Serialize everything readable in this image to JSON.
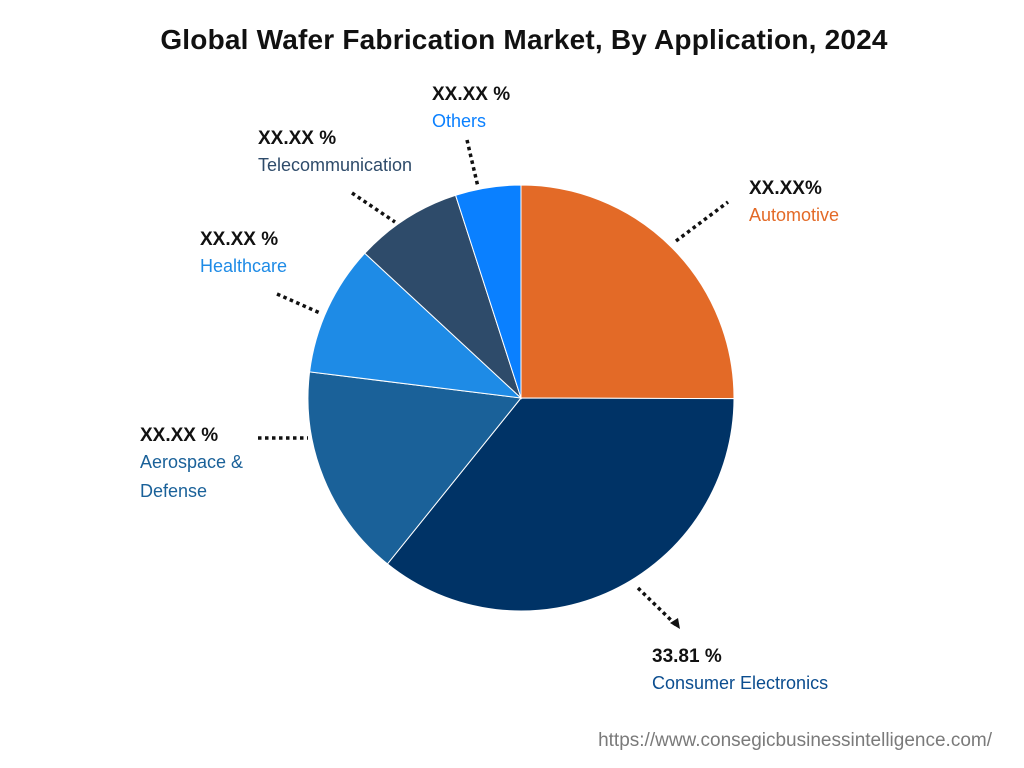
{
  "chart_data": {
    "type": "pie",
    "title": "Global Wafer Fabrication Market, By Application, 2024",
    "slices": [
      {
        "label": "Automotive",
        "value_label": "XX.XX%",
        "value": 23.7,
        "color": "#E36A27"
      },
      {
        "label": "Consumer Electronics",
        "value_label": "33.81 %",
        "value": 33.81,
        "color": "#003366"
      },
      {
        "label": "Aerospace & Defense",
        "value_label": "XX.XX %",
        "value": 15.3,
        "color": "#1A6199"
      },
      {
        "label": "Healthcare",
        "value_label": "XX.XX %",
        "value": 9.4,
        "color": "#1E8BE6"
      },
      {
        "label": "Telecommunication",
        "value_label": "XX.XX %",
        "value": 7.7,
        "color": "#2E4B6A"
      },
      {
        "label": "Others",
        "value_label": "XX.XX %",
        "value": 4.7,
        "color": "#0A80FF"
      }
    ],
    "label_colors": {
      "Automotive": "#E36A27",
      "Consumer Electronics": "#0B4D8F",
      "Aerospace & Defense": "#1A6199",
      "Healthcare": "#1E8BE6",
      "Telecommunication": "#2E4B6A",
      "Others": "#0A80FF"
    }
  },
  "footer": {
    "url": "https://www.consegicbusinessintelligence.com/"
  }
}
